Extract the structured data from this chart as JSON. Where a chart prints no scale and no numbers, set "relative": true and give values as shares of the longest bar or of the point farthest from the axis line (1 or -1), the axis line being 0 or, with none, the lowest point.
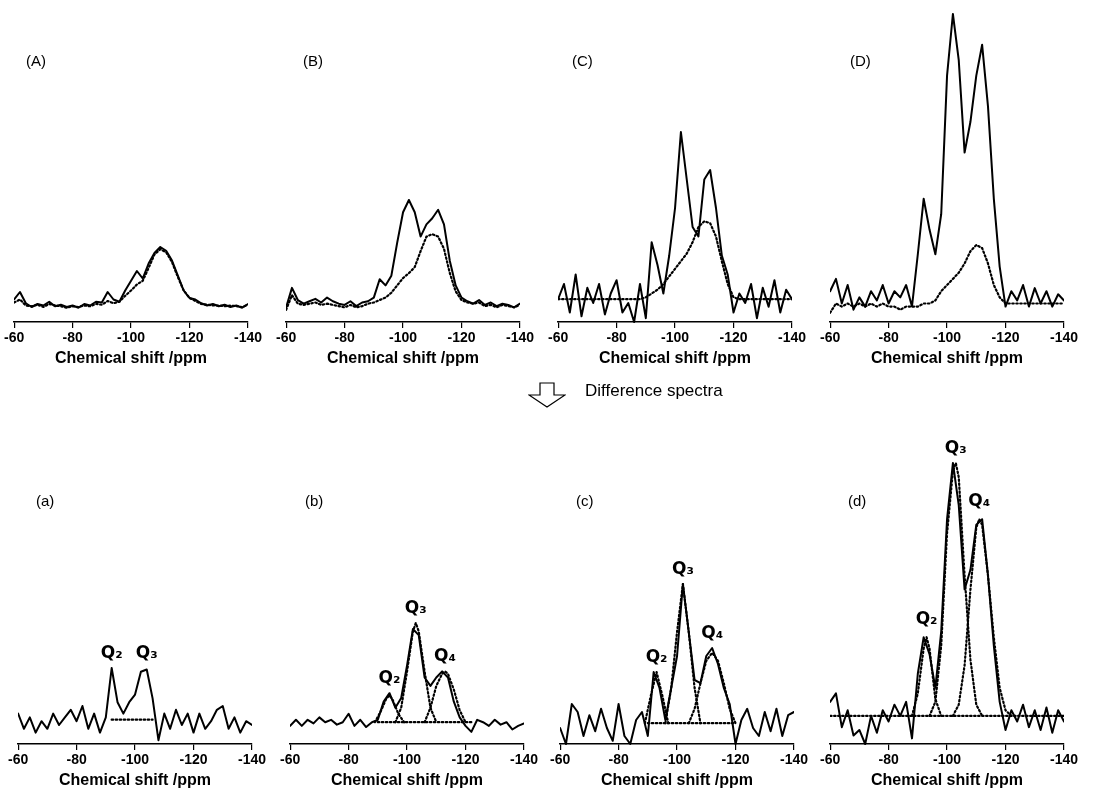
{
  "chart_data": [
    {
      "type": "line",
      "title": "(A)",
      "xlabel": "Chemical shift /ppm",
      "relative": true,
      "marker": "none",
      "xlim": [
        -60,
        -140
      ],
      "xticks": [
        -60,
        -80,
        -100,
        -120,
        -140
      ],
      "x": [
        -60,
        -62,
        -64,
        -66,
        -68,
        -70,
        -72,
        -74,
        -76,
        -78,
        -80,
        -82,
        -84,
        -86,
        -88,
        -90,
        -92,
        -94,
        -96,
        -98,
        -100,
        -102,
        -104,
        -106,
        -108,
        -110,
        -112,
        -114,
        -116,
        -118,
        -120,
        -122,
        -124,
        -126,
        -128,
        -130,
        -132,
        -134,
        -136,
        -138,
        -140
      ],
      "series": [
        {
          "color": "#000000",
          "line_style": "solid",
          "values": [
            0.3,
            0.4,
            0.25,
            0.2,
            0.24,
            0.22,
            0.27,
            0.21,
            0.23,
            0.2,
            0.22,
            0.19,
            0.24,
            0.22,
            0.27,
            0.26,
            0.4,
            0.3,
            0.27,
            0.42,
            0.55,
            0.68,
            0.58,
            0.78,
            0.92,
            1.0,
            0.95,
            0.82,
            0.62,
            0.42,
            0.32,
            0.3,
            0.25,
            0.22,
            0.24,
            0.21,
            0.23,
            0.2,
            0.22,
            0.19,
            0.24
          ]
        },
        {
          "color": "#000000",
          "line_style": "dotted",
          "values": [
            0.26,
            0.3,
            0.22,
            0.21,
            0.23,
            0.2,
            0.24,
            0.22,
            0.21,
            0.19,
            0.21,
            0.2,
            0.22,
            0.21,
            0.24,
            0.23,
            0.28,
            0.25,
            0.27,
            0.35,
            0.42,
            0.5,
            0.55,
            0.72,
            0.9,
            0.97,
            0.93,
            0.8,
            0.6,
            0.42,
            0.32,
            0.28,
            0.24,
            0.23,
            0.22,
            0.22,
            0.21,
            0.22,
            0.21,
            0.2,
            0.23
          ]
        }
      ]
    },
    {
      "type": "line",
      "title": "(B)",
      "xlabel": "Chemical shift /ppm",
      "relative": true,
      "marker": "none",
      "xlim": [
        -60,
        -140
      ],
      "xticks": [
        -60,
        -80,
        -100,
        -120,
        -140
      ],
      "x": [
        -60,
        -62,
        -64,
        -66,
        -68,
        -70,
        -72,
        -74,
        -76,
        -78,
        -80,
        -82,
        -84,
        -86,
        -88,
        -90,
        -92,
        -94,
        -96,
        -98,
        -100,
        -102,
        -104,
        -106,
        -108,
        -110,
        -112,
        -114,
        -116,
        -118,
        -120,
        -122,
        -124,
        -126,
        -128,
        -130,
        -132,
        -134,
        -136,
        -138,
        -140
      ],
      "series": [
        {
          "color": "#000000",
          "line_style": "solid",
          "values": [
            0.12,
            0.28,
            0.18,
            0.15,
            0.17,
            0.19,
            0.16,
            0.2,
            0.17,
            0.15,
            0.14,
            0.17,
            0.13,
            0.16,
            0.17,
            0.2,
            0.35,
            0.3,
            0.38,
            0.65,
            0.9,
            1.0,
            0.9,
            0.7,
            0.8,
            0.85,
            0.92,
            0.8,
            0.5,
            0.3,
            0.2,
            0.17,
            0.15,
            0.18,
            0.14,
            0.16,
            0.13,
            0.15,
            0.14,
            0.12,
            0.15
          ]
        },
        {
          "color": "#000000",
          "line_style": "dotted",
          "values": [
            0.1,
            0.22,
            0.15,
            0.14,
            0.15,
            0.16,
            0.14,
            0.15,
            0.14,
            0.13,
            0.12,
            0.14,
            0.12,
            0.13,
            0.15,
            0.16,
            0.18,
            0.2,
            0.24,
            0.3,
            0.36,
            0.4,
            0.45,
            0.58,
            0.7,
            0.72,
            0.7,
            0.6,
            0.4,
            0.25,
            0.18,
            0.16,
            0.15,
            0.16,
            0.13,
            0.14,
            0.12,
            0.14,
            0.13,
            0.12,
            0.14
          ]
        }
      ]
    },
    {
      "type": "line",
      "title": "(C)",
      "xlabel": "Chemical shift /ppm",
      "relative": true,
      "marker": "none",
      "xlim": [
        -60,
        -140
      ],
      "xticks": [
        -60,
        -80,
        -100,
        -120,
        -140
      ],
      "x": [
        -60,
        -62,
        -64,
        -66,
        -68,
        -70,
        -72,
        -74,
        -76,
        -78,
        -80,
        -82,
        -84,
        -86,
        -88,
        -90,
        -92,
        -94,
        -96,
        -98,
        -100,
        -102,
        -104,
        -106,
        -108,
        -110,
        -112,
        -114,
        -116,
        -118,
        -120,
        -122,
        -124,
        -126,
        -128,
        -130,
        -132,
        -134,
        -136,
        -138,
        -140
      ],
      "series": [
        {
          "color": "#000000",
          "line_style": "solid",
          "values": [
            0.12,
            0.2,
            0.05,
            0.25,
            0.03,
            0.18,
            0.1,
            0.2,
            0.04,
            0.15,
            0.22,
            0.05,
            0.1,
            0.0,
            0.2,
            0.02,
            0.42,
            0.3,
            0.15,
            0.35,
            0.6,
            1.0,
            0.75,
            0.5,
            0.45,
            0.75,
            0.8,
            0.6,
            0.35,
            0.25,
            0.05,
            0.15,
            0.1,
            0.2,
            0.02,
            0.18,
            0.08,
            0.22,
            0.05,
            0.17,
            0.12
          ]
        },
        {
          "color": "#000000",
          "line_style": "dotted",
          "values": [
            0.12,
            0.12,
            0.12,
            0.12,
            0.12,
            0.12,
            0.12,
            0.12,
            0.12,
            0.12,
            0.12,
            0.12,
            0.12,
            0.12,
            0.12,
            0.13,
            0.15,
            0.17,
            0.2,
            0.24,
            0.28,
            0.32,
            0.36,
            0.42,
            0.5,
            0.53,
            0.52,
            0.45,
            0.32,
            0.2,
            0.13,
            0.12,
            0.12,
            0.12,
            0.12,
            0.12,
            0.12,
            0.12,
            0.12,
            0.12,
            0.12
          ]
        }
      ]
    },
    {
      "type": "line",
      "title": "(D)",
      "xlabel": "Chemical shift /ppm",
      "relative": true,
      "marker": "none",
      "xlim": [
        -60,
        -140
      ],
      "xticks": [
        -60,
        -80,
        -100,
        -120,
        -140
      ],
      "x": [
        -60,
        -62,
        -64,
        -66,
        -68,
        -70,
        -72,
        -74,
        -76,
        -78,
        -80,
        -82,
        -84,
        -86,
        -88,
        -90,
        -92,
        -94,
        -96,
        -98,
        -100,
        -102,
        -104,
        -106,
        -108,
        -110,
        -112,
        -114,
        -116,
        -118,
        -120,
        -122,
        -124,
        -126,
        -128,
        -130,
        -132,
        -134,
        -136,
        -138,
        -140
      ],
      "series": [
        {
          "color": "#000000",
          "line_style": "solid",
          "values": [
            0.1,
            0.14,
            0.06,
            0.12,
            0.04,
            0.08,
            0.05,
            0.1,
            0.07,
            0.12,
            0.06,
            0.1,
            0.08,
            0.12,
            0.05,
            0.22,
            0.4,
            0.3,
            0.22,
            0.35,
            0.8,
            1.0,
            0.85,
            0.55,
            0.65,
            0.8,
            0.9,
            0.7,
            0.4,
            0.18,
            0.05,
            0.1,
            0.07,
            0.12,
            0.05,
            0.11,
            0.06,
            0.1,
            0.05,
            0.09,
            0.07
          ]
        },
        {
          "color": "#000000",
          "line_style": "dotted",
          "values": [
            0.03,
            0.06,
            0.05,
            0.06,
            0.05,
            0.06,
            0.05,
            0.06,
            0.05,
            0.06,
            0.05,
            0.05,
            0.04,
            0.05,
            0.05,
            0.05,
            0.06,
            0.06,
            0.07,
            0.1,
            0.12,
            0.14,
            0.16,
            0.19,
            0.23,
            0.25,
            0.24,
            0.19,
            0.12,
            0.08,
            0.06,
            0.06,
            0.06,
            0.06,
            0.06,
            0.06,
            0.06,
            0.06,
            0.06,
            0.06,
            0.06
          ]
        }
      ]
    },
    {
      "type": "line",
      "title": "(a)",
      "xlabel": "Chemical shift /ppm",
      "relative": true,
      "marker": "none",
      "xlim": [
        -60,
        -140
      ],
      "xticks": [
        -60,
        -80,
        -100,
        -120,
        -140
      ],
      "annotations": [
        "Difference spectra",
        {
          "text": "Q₂",
          "x": -92,
          "y": 1.0
        },
        {
          "text": "Q₃",
          "x": -104,
          "y": 1.0
        }
      ],
      "x": [
        -60,
        -62,
        -64,
        -66,
        -68,
        -70,
        -72,
        -74,
        -76,
        -78,
        -80,
        -82,
        -84,
        -86,
        -88,
        -90,
        -92,
        -94,
        -96,
        -98,
        -100,
        -102,
        -104,
        -106,
        -108,
        -110,
        -112,
        -114,
        -116,
        -118,
        -120,
        -122,
        -124,
        -126,
        -128,
        -130,
        -132,
        -134,
        -136,
        -138,
        -140
      ],
      "series": [
        {
          "color": "#000000",
          "line_style": "solid",
          "values": [
            0.4,
            0.2,
            0.35,
            0.15,
            0.3,
            0.2,
            0.4,
            0.25,
            0.35,
            0.45,
            0.3,
            0.5,
            0.2,
            0.4,
            0.15,
            0.35,
            1.0,
            0.55,
            0.4,
            0.55,
            0.65,
            0.95,
            0.98,
            0.6,
            0.05,
            0.4,
            0.2,
            0.45,
            0.25,
            0.4,
            0.15,
            0.4,
            0.2,
            0.3,
            0.45,
            0.5,
            0.2,
            0.35,
            0.15,
            0.3,
            0.25
          ]
        },
        {
          "color": "#000000",
          "line_style": "dotted",
          "x": [
            -92,
            -106
          ],
          "values": [
            0.32,
            0.32
          ]
        }
      ]
    },
    {
      "type": "line",
      "title": "(b)",
      "xlabel": "Chemical shift /ppm",
      "relative": true,
      "marker": "none",
      "xlim": [
        -60,
        -140
      ],
      "xticks": [
        -60,
        -80,
        -100,
        -120,
        -140
      ],
      "annotations": [
        {
          "text": "Q₂",
          "x": -94,
          "y": 0.42
        },
        {
          "text": "Q₃",
          "x": -103,
          "y": 1.0
        },
        {
          "text": "Q₄",
          "x": -113,
          "y": 0.6
        }
      ],
      "x": [
        -60,
        -62,
        -64,
        -66,
        -68,
        -70,
        -72,
        -74,
        -76,
        -78,
        -80,
        -82,
        -84,
        -86,
        -88,
        -90,
        -92,
        -94,
        -96,
        -98,
        -100,
        -102,
        -104,
        -106,
        -108,
        -110,
        -112,
        -114,
        -116,
        -118,
        -120,
        -122,
        -124,
        -126,
        -128,
        -130,
        -132,
        -134,
        -136,
        -138,
        -140
      ],
      "series": [
        {
          "color": "#000000",
          "line_style": "solid",
          "values": [
            0.15,
            0.2,
            0.15,
            0.2,
            0.17,
            0.22,
            0.18,
            0.2,
            0.16,
            0.18,
            0.25,
            0.15,
            0.2,
            0.14,
            0.18,
            0.2,
            0.35,
            0.42,
            0.3,
            0.38,
            0.65,
            0.95,
            0.9,
            0.55,
            0.48,
            0.55,
            0.6,
            0.55,
            0.35,
            0.22,
            0.15,
            0.1,
            0.2,
            0.18,
            0.15,
            0.2,
            0.16,
            0.18,
            0.12,
            0.15,
            0.17
          ]
        },
        {
          "color": "#000000",
          "line_style": "dotted",
          "x": [
            -90,
            -122
          ],
          "values": [
            0.18,
            0.18
          ]
        },
        {
          "color": "#000000",
          "line_style": "dotted",
          "x": [
            -89,
            -91,
            -93,
            -94,
            -95,
            -97,
            -99
          ],
          "values": [
            0.18,
            0.27,
            0.38,
            0.4,
            0.37,
            0.25,
            0.18
          ]
        },
        {
          "color": "#000000",
          "line_style": "dotted",
          "x": [
            -96,
            -98,
            -100,
            -102,
            -103,
            -104,
            -106,
            -108,
            -110
          ],
          "values": [
            0.18,
            0.3,
            0.6,
            0.93,
            1.0,
            0.93,
            0.6,
            0.3,
            0.18
          ]
        },
        {
          "color": "#000000",
          "line_style": "dotted",
          "x": [
            -106,
            -108,
            -110,
            -112,
            -113,
            -114,
            -116,
            -118,
            -120
          ],
          "values": [
            0.18,
            0.3,
            0.48,
            0.58,
            0.6,
            0.58,
            0.45,
            0.28,
            0.18
          ]
        }
      ]
    },
    {
      "type": "line",
      "title": "(c)",
      "xlabel": "Chemical shift /ppm",
      "relative": true,
      "marker": "none",
      "xlim": [
        -60,
        -140
      ],
      "xticks": [
        -60,
        -80,
        -100,
        -120,
        -140
      ],
      "annotations": [
        {
          "text": "Q₂",
          "x": -93,
          "y": 0.45
        },
        {
          "text": "Q₃",
          "x": -102,
          "y": 1.0
        },
        {
          "text": "Q₄",
          "x": -112,
          "y": 0.6
        }
      ],
      "x": [
        -60,
        -62,
        -64,
        -66,
        -68,
        -70,
        -72,
        -74,
        -76,
        -78,
        -80,
        -82,
        -84,
        -86,
        -88,
        -90,
        -92,
        -94,
        -96,
        -98,
        -100,
        -102,
        -104,
        -106,
        -108,
        -110,
        -112,
        -114,
        -116,
        -118,
        -120,
        -122,
        -124,
        -126,
        -128,
        -130,
        -132,
        -134,
        -136,
        -138,
        -140
      ],
      "series": [
        {
          "color": "#000000",
          "line_style": "solid",
          "values": [
            0.1,
            0.0,
            0.25,
            0.2,
            0.05,
            0.18,
            0.08,
            0.22,
            0.1,
            0.02,
            0.25,
            0.05,
            0.0,
            0.15,
            0.2,
            0.05,
            0.45,
            0.35,
            0.15,
            0.35,
            0.55,
            1.0,
            0.7,
            0.4,
            0.38,
            0.55,
            0.6,
            0.5,
            0.35,
            0.25,
            0.0,
            0.15,
            0.22,
            0.1,
            0.05,
            0.2,
            0.08,
            0.22,
            0.05,
            0.18,
            0.2
          ]
        },
        {
          "color": "#000000",
          "line_style": "dotted",
          "x": [
            -90,
            -120
          ],
          "values": [
            0.13,
            0.13
          ]
        },
        {
          "color": "#000000",
          "line_style": "dotted",
          "x": [
            -89,
            -91,
            -93,
            -95,
            -97
          ],
          "values": [
            0.13,
            0.3,
            0.45,
            0.3,
            0.13
          ]
        },
        {
          "color": "#000000",
          "line_style": "dotted",
          "x": [
            -96,
            -98,
            -100,
            -102,
            -104,
            -106,
            -108
          ],
          "values": [
            0.13,
            0.35,
            0.7,
            1.0,
            0.7,
            0.35,
            0.13
          ]
        },
        {
          "color": "#000000",
          "line_style": "dotted",
          "x": [
            -104,
            -106,
            -108,
            -110,
            -112,
            -114,
            -116,
            -118,
            -120
          ],
          "values": [
            0.13,
            0.22,
            0.38,
            0.52,
            0.57,
            0.52,
            0.38,
            0.22,
            0.13
          ]
        }
      ]
    },
    {
      "type": "line",
      "title": "(d)",
      "xlabel": "Chemical shift /ppm",
      "relative": true,
      "marker": "none",
      "xlim": [
        -60,
        -140
      ],
      "xticks": [
        -60,
        -80,
        -100,
        -120,
        -140
      ],
      "annotations": [
        {
          "text": "Q₂",
          "x": -93,
          "y": 0.39
        },
        {
          "text": "Q₃",
          "x": -103,
          "y": 1.0
        },
        {
          "text": "Q₄",
          "x": -111,
          "y": 0.81
        }
      ],
      "x": [
        -60,
        -62,
        -64,
        -66,
        -68,
        -70,
        -72,
        -74,
        -76,
        -78,
        -80,
        -82,
        -84,
        -86,
        -88,
        -90,
        -92,
        -94,
        -96,
        -98,
        -100,
        -102,
        -104,
        -106,
        -108,
        -110,
        -112,
        -114,
        -116,
        -118,
        -120,
        -122,
        -124,
        -126,
        -128,
        -130,
        -132,
        -134,
        -136,
        -138,
        -140
      ],
      "series": [
        {
          "color": "#000000",
          "line_style": "solid",
          "values": [
            0.15,
            0.18,
            0.06,
            0.12,
            0.03,
            0.05,
            0.0,
            0.1,
            0.04,
            0.12,
            0.08,
            0.14,
            0.1,
            0.15,
            0.02,
            0.25,
            0.38,
            0.32,
            0.2,
            0.4,
            0.8,
            1.0,
            0.85,
            0.55,
            0.62,
            0.78,
            0.8,
            0.6,
            0.35,
            0.15,
            0.05,
            0.12,
            0.08,
            0.14,
            0.06,
            0.12,
            0.05,
            0.13,
            0.04,
            0.12,
            0.08
          ]
        },
        {
          "color": "#000000",
          "line_style": "dotted",
          "x": [
            -60,
            -140
          ],
          "values": [
            0.1,
            0.1
          ]
        },
        {
          "color": "#000000",
          "line_style": "dotted",
          "x": [
            -88,
            -90,
            -92,
            -93,
            -94,
            -96,
            -98
          ],
          "values": [
            0.1,
            0.18,
            0.34,
            0.38,
            0.34,
            0.16,
            0.1
          ]
        },
        {
          "color": "#000000",
          "line_style": "dotted",
          "x": [
            -94,
            -96,
            -98,
            -100,
            -102,
            -103,
            -104,
            -106,
            -108,
            -110,
            -112
          ],
          "values": [
            0.1,
            0.15,
            0.35,
            0.75,
            0.97,
            1.0,
            0.95,
            0.6,
            0.3,
            0.14,
            0.1
          ]
        },
        {
          "color": "#000000",
          "line_style": "dotted",
          "x": [
            -102,
            -104,
            -106,
            -108,
            -110,
            -111,
            -112,
            -114,
            -116,
            -118,
            -120,
            -122
          ],
          "values": [
            0.1,
            0.14,
            0.28,
            0.55,
            0.77,
            0.8,
            0.78,
            0.6,
            0.38,
            0.2,
            0.12,
            0.1
          ]
        }
      ]
    }
  ]
}
